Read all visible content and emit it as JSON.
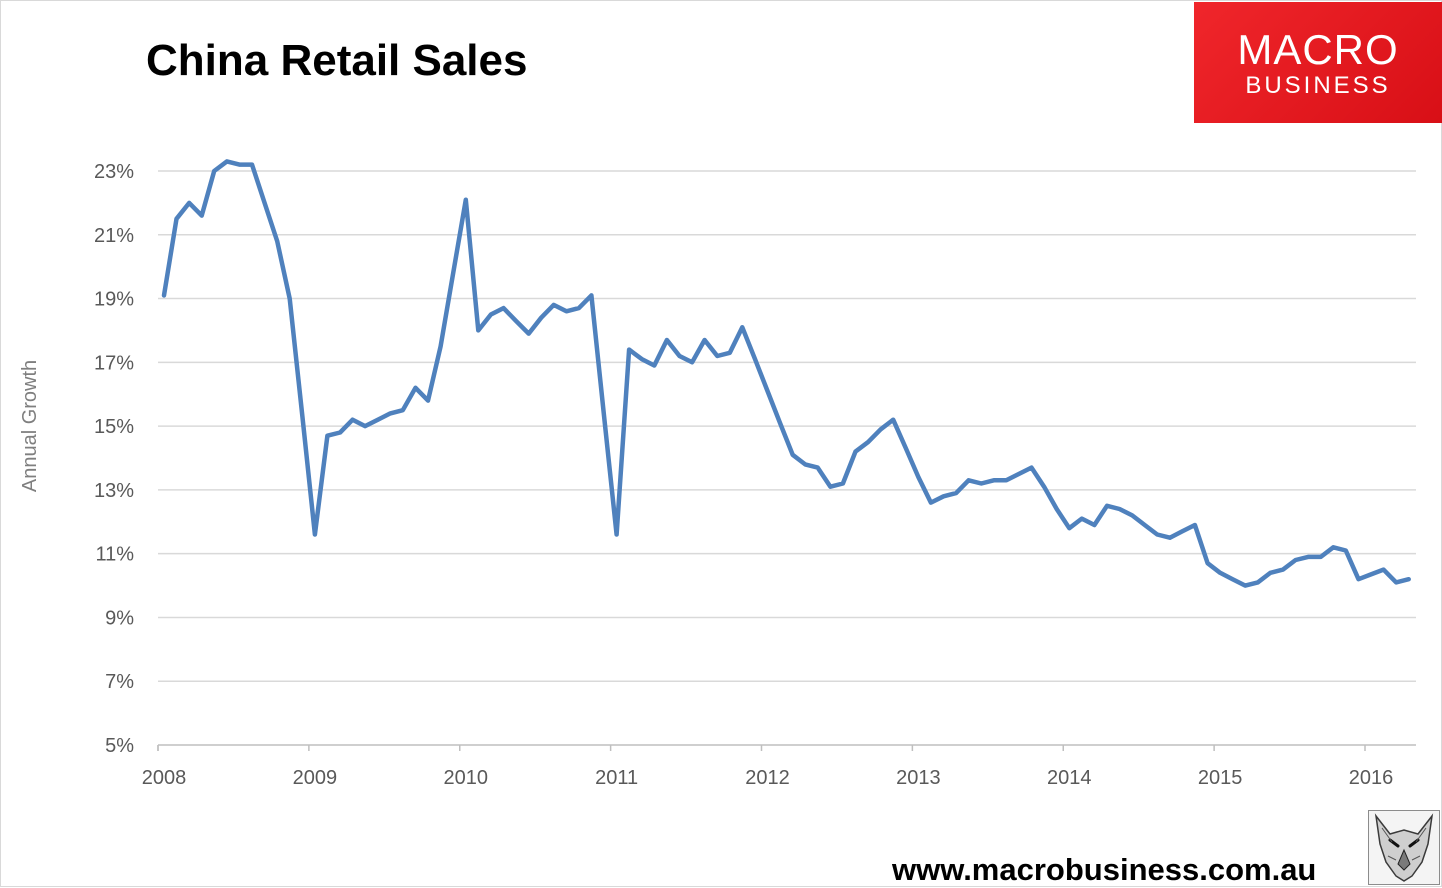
{
  "title": "China Retail Sales",
  "logo": {
    "line1": "MACRO",
    "line2": "BUSINESS"
  },
  "footer_url": "www.macrobusiness.com.au",
  "colors": {
    "line": "#4f81bd",
    "grid": "#d9d9d9",
    "logo_bg": "#e8191f"
  },
  "icons": {
    "mascot": "wolf-logo-icon"
  },
  "chart_data": {
    "type": "line",
    "title": "China Retail Sales",
    "xlabel": "",
    "ylabel": "Annual Growth",
    "ylim": [
      5,
      23
    ],
    "yticks": [
      "5%",
      "7%",
      "9%",
      "11%",
      "13%",
      "15%",
      "17%",
      "19%",
      "21%",
      "23%"
    ],
    "ytick_values": [
      5,
      7,
      9,
      11,
      13,
      15,
      17,
      19,
      21,
      23
    ],
    "xticks": [
      "2008",
      "2009",
      "2010",
      "2011",
      "2012",
      "2013",
      "2014",
      "2015",
      "2016"
    ],
    "xtick_values": [
      2008,
      2009,
      2010,
      2011,
      2012,
      2013,
      2014,
      2015,
      2016
    ],
    "xlim": [
      2008,
      2016.33
    ],
    "grid": true,
    "legend": "none",
    "series": [
      {
        "x": [
          2008.0,
          2008.083,
          2008.167,
          2008.25,
          2008.333,
          2008.417,
          2008.5,
          2008.583,
          2008.667,
          2008.75,
          2008.833,
          2008.917,
          2009.0,
          2009.083,
          2009.167,
          2009.25,
          2009.333,
          2009.417,
          2009.5,
          2009.583,
          2009.667,
          2009.75,
          2009.833,
          2009.917,
          2010.0,
          2010.083,
          2010.167,
          2010.25,
          2010.333,
          2010.417,
          2010.5,
          2010.583,
          2010.667,
          2010.75,
          2010.833,
          2010.917,
          2011.0,
          2011.083,
          2011.167,
          2011.25,
          2011.333,
          2011.417,
          2011.5,
          2011.583,
          2011.667,
          2011.75,
          2011.833,
          2011.917,
          2012.0,
          2012.083,
          2012.167,
          2012.25,
          2012.333,
          2012.417,
          2012.5,
          2012.583,
          2012.667,
          2012.75,
          2012.833,
          2012.917,
          2013.0,
          2013.083,
          2013.167,
          2013.25,
          2013.333,
          2013.417,
          2013.5,
          2013.583,
          2013.667,
          2013.75,
          2013.833,
          2013.917,
          2014.0,
          2014.083,
          2014.167,
          2014.25,
          2014.333,
          2014.417,
          2014.5,
          2014.583,
          2014.667,
          2014.75,
          2014.833,
          2014.917,
          2015.0,
          2015.083,
          2015.167,
          2015.25,
          2015.333,
          2015.417,
          2015.5,
          2015.583,
          2015.667,
          2015.75,
          2015.833,
          2015.917,
          2016.0,
          2016.083,
          2016.167,
          2016.25
        ],
        "values": [
          19.1,
          21.5,
          22.0,
          21.6,
          23.0,
          23.3,
          23.2,
          23.2,
          22.0,
          20.8,
          19.0,
          15.3,
          11.6,
          14.7,
          14.8,
          15.2,
          15.0,
          15.2,
          15.4,
          15.5,
          16.2,
          15.8,
          17.5,
          19.8,
          22.1,
          18.0,
          18.5,
          18.7,
          18.3,
          17.9,
          18.4,
          18.8,
          18.6,
          18.7,
          19.1,
          15.3,
          11.6,
          17.4,
          17.1,
          16.9,
          17.7,
          17.2,
          17.0,
          17.7,
          17.2,
          17.3,
          18.1,
          17.1,
          16.1,
          15.1,
          14.1,
          13.8,
          13.7,
          13.1,
          13.2,
          14.2,
          14.5,
          14.9,
          15.2,
          14.3,
          13.4,
          12.6,
          12.8,
          12.9,
          13.3,
          13.2,
          13.3,
          13.3,
          13.5,
          13.7,
          13.1,
          12.4,
          11.8,
          12.1,
          11.9,
          12.5,
          12.4,
          12.2,
          11.9,
          11.6,
          11.5,
          11.7,
          11.9,
          10.7,
          10.4,
          10.2,
          10.0,
          10.1,
          10.4,
          10.5,
          10.8,
          10.9,
          10.9,
          11.2,
          11.1,
          10.2,
          10.35,
          10.5,
          10.1,
          10.2
        ]
      }
    ]
  }
}
